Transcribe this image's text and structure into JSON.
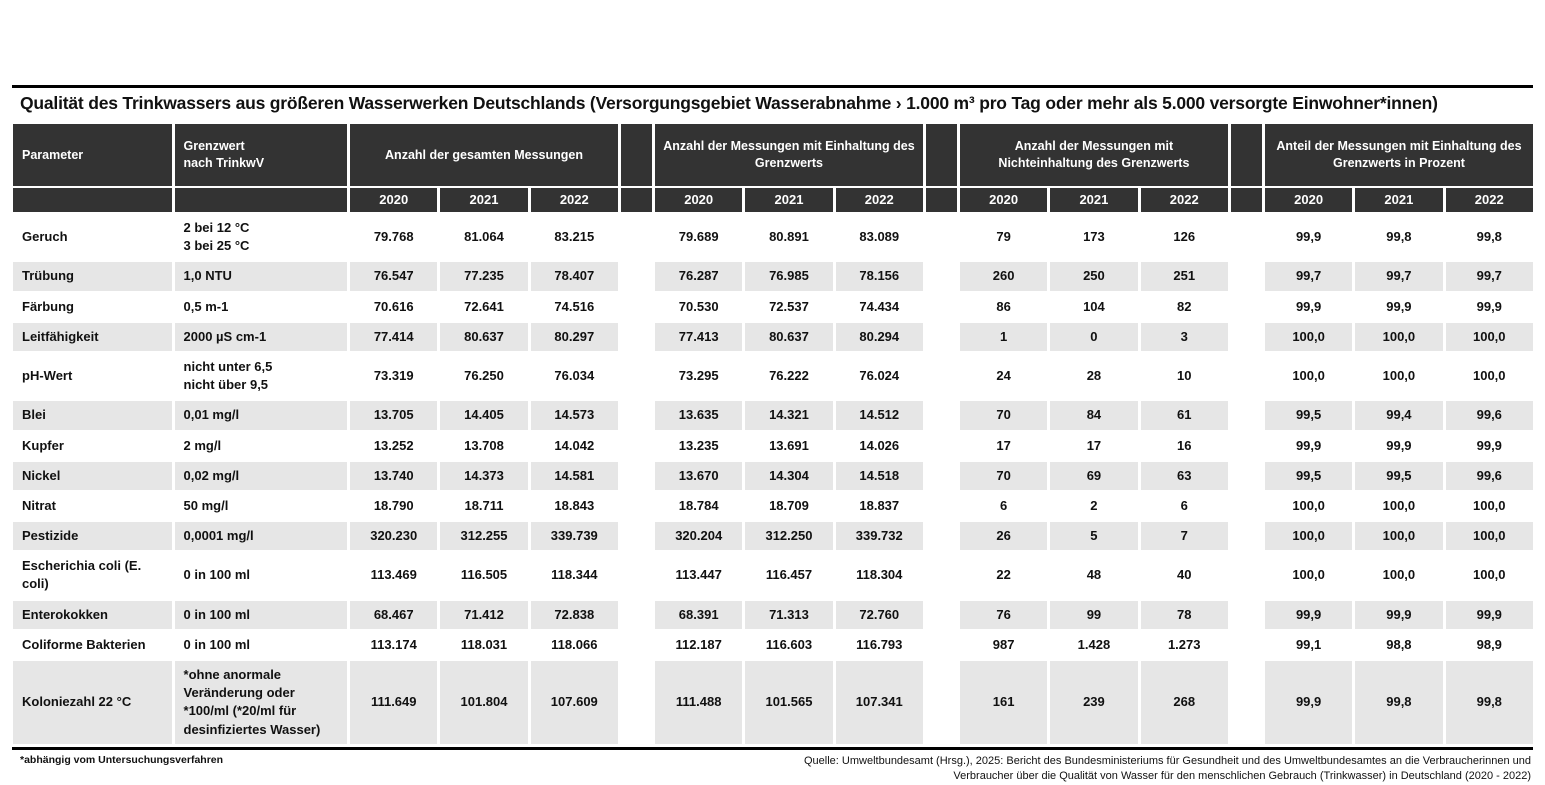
{
  "title": "Qualität des Trinkwassers aus größeren Wasserwerken Deutschlands (Versorgungsgebiet Wasserabnahme › 1.000 m³ pro Tag oder mehr als 5.000 versorgte Einwohner*innen)",
  "colors": {
    "header_bg": "#333333",
    "stripe_bg": "#e6e6e6",
    "rule": "#000000",
    "text": "#111111"
  },
  "footnote": "*abhängig vom Untersuchungsverfahren",
  "source": {
    "line1": "Quelle: Umweltbundesamt (Hrsg.), 2025: Bericht des Bundesministeriums für Gesundheit und des Umweltbundesamtes an die Verbraucherinnen und",
    "line2": "Verbraucher über die Qualität von Wasser für den menschlichen Gebrauch (Trinkwasser) in Deutschland (2020 - 2022)"
  },
  "chart_data": {
    "type": "table",
    "title": "Qualität des Trinkwassers aus größeren Wasserwerken Deutschlands (Versorgungsgebiet Wasserabnahme › 1.000 m³ pro Tag oder mehr als 5.000 versorgte Einwohner*innen)",
    "parameter_header": "Parameter",
    "limit_header": "Grenzwert\nnach TrinkwV",
    "column_groups": [
      "Anzahl der gesamten Messungen",
      "Anzahl der Messungen mit Einhaltung des Grenzwerts",
      "Anzahl der Messungen mit Nichteinhaltung des Grenzwerts",
      "Anteil der Messungen mit Einhaltung des Grenzwerts in Prozent"
    ],
    "years": [
      "2020",
      "2021",
      "2022"
    ],
    "rows": [
      {
        "parameter": "Geruch",
        "limit": "2 bei 12 °C\n3 bei 25 °C",
        "total": [
          "79.768",
          "81.064",
          "83.215"
        ],
        "compliant": [
          "79.689",
          "80.891",
          "83.089"
        ],
        "noncompliant": [
          "79",
          "173",
          "126"
        ],
        "percent": [
          "99,9",
          "99,8",
          "99,8"
        ]
      },
      {
        "parameter": "Trübung",
        "limit": "1,0 NTU",
        "total": [
          "76.547",
          "77.235",
          "78.407"
        ],
        "compliant": [
          "76.287",
          "76.985",
          "78.156"
        ],
        "noncompliant": [
          "260",
          "250",
          "251"
        ],
        "percent": [
          "99,7",
          "99,7",
          "99,7"
        ]
      },
      {
        "parameter": "Färbung",
        "limit": "0,5 m-1",
        "total": [
          "70.616",
          "72.641",
          "74.516"
        ],
        "compliant": [
          "70.530",
          "72.537",
          "74.434"
        ],
        "noncompliant": [
          "86",
          "104",
          "82"
        ],
        "percent": [
          "99,9",
          "99,9",
          "99,9"
        ]
      },
      {
        "parameter": "Leitfähigkeit",
        "limit": "2000 µS cm-1",
        "total": [
          "77.414",
          "80.637",
          "80.297"
        ],
        "compliant": [
          "77.413",
          "80.637",
          "80.294"
        ],
        "noncompliant": [
          "1",
          "0",
          "3"
        ],
        "percent": [
          "100,0",
          "100,0",
          "100,0"
        ]
      },
      {
        "parameter": "pH-Wert",
        "limit": "nicht unter 6,5\nnicht über 9,5",
        "total": [
          "73.319",
          "76.250",
          "76.034"
        ],
        "compliant": [
          "73.295",
          "76.222",
          "76.024"
        ],
        "noncompliant": [
          "24",
          "28",
          "10"
        ],
        "percent": [
          "100,0",
          "100,0",
          "100,0"
        ]
      },
      {
        "parameter": "Blei",
        "limit": "0,01 mg/l",
        "total": [
          "13.705",
          "14.405",
          "14.573"
        ],
        "compliant": [
          "13.635",
          "14.321",
          "14.512"
        ],
        "noncompliant": [
          "70",
          "84",
          "61"
        ],
        "percent": [
          "99,5",
          "99,4",
          "99,6"
        ]
      },
      {
        "parameter": "Kupfer",
        "limit": "2 mg/l",
        "total": [
          "13.252",
          "13.708",
          "14.042"
        ],
        "compliant": [
          "13.235",
          "13.691",
          "14.026"
        ],
        "noncompliant": [
          "17",
          "17",
          "16"
        ],
        "percent": [
          "99,9",
          "99,9",
          "99,9"
        ]
      },
      {
        "parameter": "Nickel",
        "limit": "0,02 mg/l",
        "total": [
          "13.740",
          "14.373",
          "14.581"
        ],
        "compliant": [
          "13.670",
          "14.304",
          "14.518"
        ],
        "noncompliant": [
          "70",
          "69",
          "63"
        ],
        "percent": [
          "99,5",
          "99,5",
          "99,6"
        ]
      },
      {
        "parameter": "Nitrat",
        "limit": "50 mg/l",
        "total": [
          "18.790",
          "18.711",
          "18.843"
        ],
        "compliant": [
          "18.784",
          "18.709",
          "18.837"
        ],
        "noncompliant": [
          "6",
          "2",
          "6"
        ],
        "percent": [
          "100,0",
          "100,0",
          "100,0"
        ]
      },
      {
        "parameter": "Pestizide",
        "limit": "0,0001 mg/l",
        "total": [
          "320.230",
          "312.255",
          "339.739"
        ],
        "compliant": [
          "320.204",
          "312.250",
          "339.732"
        ],
        "noncompliant": [
          "26",
          "5",
          "7"
        ],
        "percent": [
          "100,0",
          "100,0",
          "100,0"
        ]
      },
      {
        "parameter": "Escherichia coli (E. coli)",
        "limit": "0 in 100 ml",
        "total": [
          "113.469",
          "116.505",
          "118.344"
        ],
        "compliant": [
          "113.447",
          "116.457",
          "118.304"
        ],
        "noncompliant": [
          "22",
          "48",
          "40"
        ],
        "percent": [
          "100,0",
          "100,0",
          "100,0"
        ]
      },
      {
        "parameter": "Enterokokken",
        "limit": "0 in 100 ml",
        "total": [
          "68.467",
          "71.412",
          "72.838"
        ],
        "compliant": [
          "68.391",
          "71.313",
          "72.760"
        ],
        "noncompliant": [
          "76",
          "99",
          "78"
        ],
        "percent": [
          "99,9",
          "99,9",
          "99,9"
        ]
      },
      {
        "parameter": "Coliforme Bakterien",
        "limit": "0 in 100 ml",
        "total": [
          "113.174",
          "118.031",
          "118.066"
        ],
        "compliant": [
          "112.187",
          "116.603",
          "116.793"
        ],
        "noncompliant": [
          "987",
          "1.428",
          "1.273"
        ],
        "percent": [
          "99,1",
          "98,8",
          "98,9"
        ]
      },
      {
        "parameter": "Koloniezahl 22 °C",
        "limit": "*ohne anormale Veränderung oder *100/ml (*20/ml für desinfiziertes Wasser)",
        "total": [
          "111.649",
          "101.804",
          "107.609"
        ],
        "compliant": [
          "111.488",
          "101.565",
          "107.341"
        ],
        "noncompliant": [
          "161",
          "239",
          "268"
        ],
        "percent": [
          "99,9",
          "99,8",
          "99,8"
        ]
      }
    ]
  }
}
